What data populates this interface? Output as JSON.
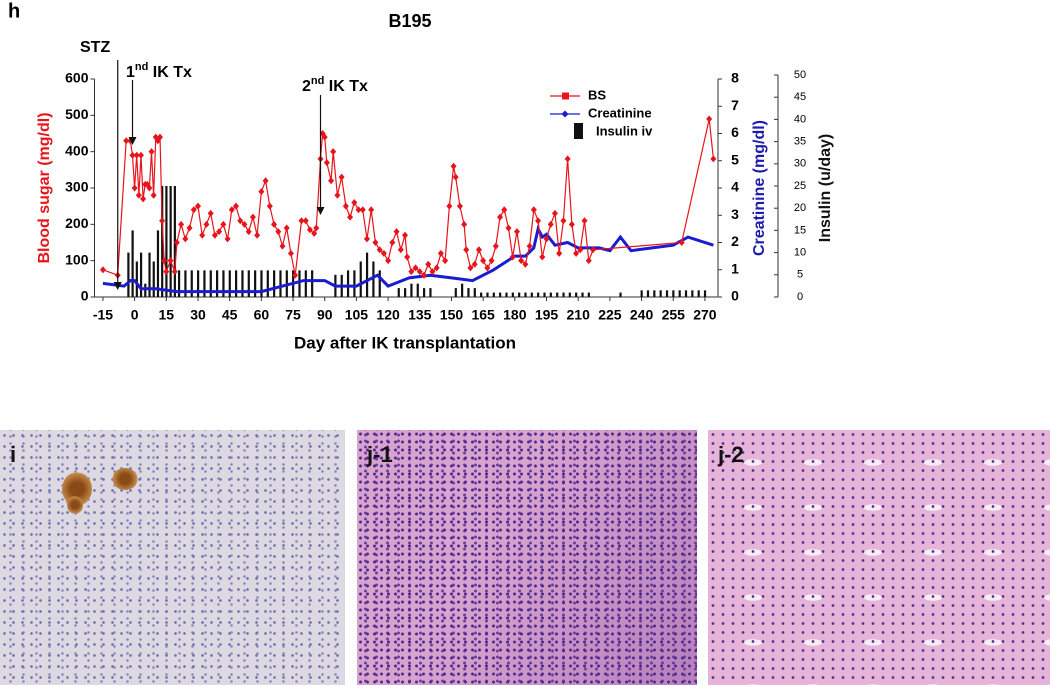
{
  "panel_label": "h",
  "chart_data": {
    "type": "combo",
    "title": "B195",
    "x_label": "Day after IK transplantation",
    "y_label": "Blood sugar (mg/dl)",
    "y2_label": "Creatinine (mg/dl)",
    "y3_label": "Insulin (u/day)",
    "xlim": [
      -19,
      276
    ],
    "xticks": [
      -15,
      0,
      15,
      30,
      45,
      60,
      75,
      90,
      105,
      120,
      135,
      150,
      165,
      180,
      195,
      210,
      225,
      240,
      255,
      270
    ],
    "ylim": [
      0,
      600
    ],
    "yticks": [
      0,
      100,
      200,
      300,
      400,
      500,
      600
    ],
    "y2lim": [
      0,
      8
    ],
    "y2ticks": [
      0,
      1,
      2,
      3,
      4,
      5,
      6,
      7,
      8
    ],
    "y3lim": [
      0,
      50
    ],
    "y3ticks": [
      0,
      5,
      10,
      15,
      20,
      25,
      30,
      35,
      40,
      45,
      50
    ],
    "annotations": [
      {
        "parts": [
          "STZ"
        ],
        "x": -8
      },
      {
        "parts": [
          "1",
          "nd",
          " IK Tx"
        ],
        "x": -1
      },
      {
        "parts": [
          "2",
          "nd",
          " IK Tx"
        ],
        "x": 88
      }
    ],
    "series": [
      {
        "name": "BS",
        "color": "#e8141b",
        "axis": "y",
        "x": [
          -15,
          -8,
          -4,
          -2,
          -1,
          0,
          1,
          2,
          3,
          4,
          5,
          6,
          7,
          8,
          9,
          10,
          11,
          12,
          13,
          14,
          15,
          17,
          19,
          20,
          22,
          24,
          26,
          28,
          30,
          32,
          34,
          36,
          38,
          40,
          42,
          44,
          46,
          48,
          50,
          52,
          54,
          56,
          58,
          60,
          62,
          64,
          66,
          68,
          70,
          72,
          74,
          76,
          79,
          81,
          83,
          85,
          86,
          88,
          89,
          90,
          91,
          93,
          94,
          96,
          98,
          100,
          102,
          104,
          106,
          108,
          110,
          112,
          114,
          116,
          118,
          120,
          122,
          124,
          126,
          128,
          129,
          131,
          133,
          135,
          137,
          139,
          141,
          143,
          145,
          147,
          149,
          151,
          152,
          154,
          156,
          157,
          159,
          161,
          163,
          165,
          167,
          169,
          171,
          173,
          175,
          177,
          179,
          181,
          183,
          185,
          187,
          189,
          191,
          193,
          195,
          197,
          199,
          201,
          203,
          205,
          207,
          209,
          211,
          213,
          215,
          217,
          259,
          272,
          274
        ],
        "values": [
          75,
          60,
          430,
          430,
          390,
          300,
          390,
          280,
          390,
          270,
          310,
          310,
          300,
          400,
          280,
          440,
          430,
          440,
          210,
          100,
          70,
          100,
          70,
          150,
          200,
          160,
          190,
          240,
          250,
          170,
          200,
          230,
          170,
          180,
          200,
          160,
          240,
          250,
          210,
          200,
          180,
          220,
          170,
          290,
          320,
          250,
          200,
          180,
          140,
          190,
          120,
          60,
          210,
          210,
          185,
          175,
          190,
          380,
          450,
          440,
          370,
          320,
          400,
          280,
          330,
          250,
          220,
          260,
          240,
          240,
          160,
          240,
          150,
          130,
          120,
          100,
          150,
          180,
          130,
          170,
          110,
          70,
          80,
          70,
          60,
          90,
          70,
          80,
          120,
          100,
          250,
          360,
          330,
          250,
          200,
          130,
          80,
          90,
          130,
          100,
          80,
          100,
          140,
          220,
          240,
          190,
          110,
          180,
          100,
          90,
          140,
          240,
          210,
          110,
          160,
          200,
          230,
          120,
          210,
          380,
          200,
          120,
          130,
          210,
          100,
          130,
          150,
          490,
          380
        ]
      },
      {
        "name": "Creatinine",
        "color": "#1b1bd0",
        "axis": "y2",
        "x": [
          -15,
          -5,
          -2,
          0,
          3,
          10,
          20,
          40,
          60,
          70,
          80,
          90,
          95,
          105,
          115,
          120,
          130,
          140,
          150,
          160,
          170,
          180,
          185,
          189,
          191,
          193,
          195,
          199,
          205,
          210,
          220,
          225,
          230,
          235,
          245,
          255,
          262,
          274
        ],
        "values": [
          0.5,
          0.4,
          0.6,
          0.6,
          0.3,
          0.3,
          0.2,
          0.2,
          0.2,
          0.4,
          0.6,
          0.6,
          0.4,
          0.4,
          0.8,
          0.4,
          0.7,
          0.8,
          0.7,
          0.6,
          1.0,
          1.5,
          1.5,
          1.8,
          2.5,
          2.2,
          2.3,
          1.9,
          2.0,
          1.8,
          1.8,
          1.7,
          2.2,
          1.7,
          1.8,
          1.9,
          2.2,
          1.9
        ]
      },
      {
        "name": "Insulin iv",
        "color": "#111111",
        "axis": "y3",
        "x": [
          -3,
          -1,
          1,
          3,
          5,
          7,
          9,
          11,
          13,
          15,
          17,
          19,
          21,
          24,
          27,
          30,
          33,
          36,
          39,
          42,
          45,
          48,
          51,
          54,
          57,
          60,
          63,
          66,
          69,
          72,
          75,
          78,
          81,
          84,
          95,
          98,
          101,
          104,
          107,
          110,
          113,
          116,
          125,
          128,
          131,
          134,
          137,
          140,
          152,
          155,
          158,
          161,
          164,
          167,
          170,
          173,
          176,
          179,
          182,
          185,
          188,
          191,
          194,
          197,
          200,
          203,
          206,
          209,
          212,
          215,
          230,
          240,
          243,
          246,
          249,
          252,
          255,
          258,
          261,
          264,
          267,
          270
        ],
        "values": [
          10,
          15,
          8,
          10,
          3,
          10,
          8,
          15,
          25,
          25,
          25,
          25,
          6,
          6,
          6,
          6,
          6,
          6,
          6,
          6,
          6,
          6,
          6,
          6,
          6,
          6,
          6,
          6,
          6,
          6,
          6,
          6,
          6,
          6,
          5,
          5,
          6,
          6,
          8,
          10,
          8,
          6,
          2,
          2,
          3,
          3,
          2,
          2,
          2,
          3,
          2,
          2,
          1,
          1,
          1,
          1,
          1,
          1,
          1,
          1,
          1,
          1,
          1,
          1,
          1,
          1,
          1,
          1,
          1,
          1,
          1,
          1.5,
          1.5,
          1.5,
          1.5,
          1.5,
          1.5,
          1.5,
          1.5,
          1.5,
          1.5,
          1.5
        ]
      }
    ]
  },
  "micrographs": [
    {
      "label": "i"
    },
    {
      "label": "j-1"
    },
    {
      "label": "j-2"
    }
  ]
}
